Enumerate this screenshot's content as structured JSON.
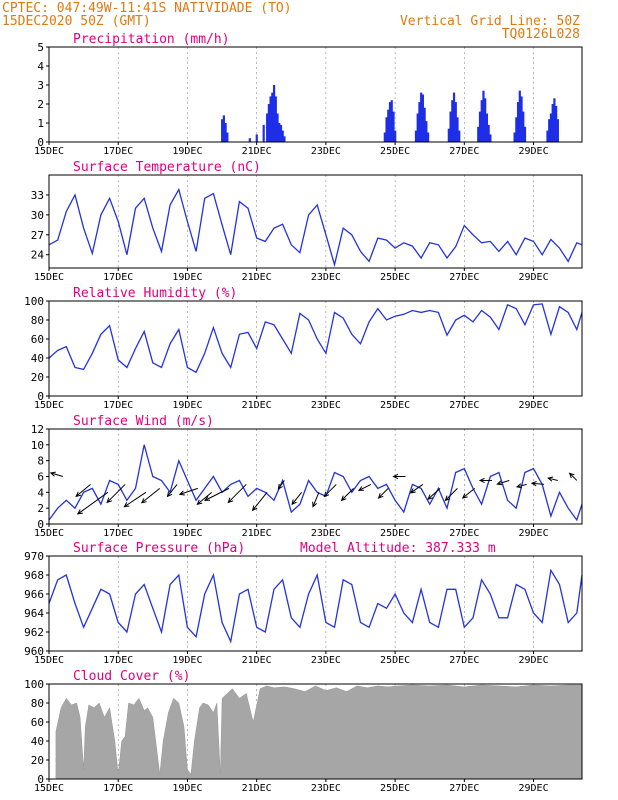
{
  "header": {
    "line1": "CPTEC:   047:49W-11:41S  NATIVIDADE (TO)",
    "line2": "15DEC2020 50Z (GMT)",
    "right1": "Vertical Grid Line: 50Z",
    "right2": "TQ0126L028"
  },
  "colors": {
    "header": "#e07a10",
    "title": "#e0007f",
    "line": "#2233dd",
    "bars": "#1e2ee6",
    "cloud": "#a6a6a6",
    "arrow": "#000000"
  },
  "x_ticks": [
    "15DEC",
    "17DEC",
    "19DEC",
    "21DEC",
    "23DEC",
    "25DEC",
    "27DEC",
    "29DEC"
  ],
  "x_tick_days": [
    0,
    2,
    4,
    6,
    8,
    10,
    12,
    14
  ],
  "x_range_days": [
    0,
    15.4
  ],
  "chart_data": [
    {
      "type": "bar",
      "title": "Precipitation (mm/h)",
      "ylim": [
        0,
        5
      ],
      "yticks": [
        "0",
        "1",
        "2",
        "3",
        "4",
        "5"
      ],
      "x_days": [
        5.0,
        5.05,
        5.1,
        5.15,
        5.8,
        6.0,
        6.2,
        6.3,
        6.35,
        6.4,
        6.45,
        6.5,
        6.55,
        6.6,
        6.65,
        6.7,
        6.75,
        6.8,
        9.7,
        9.75,
        9.8,
        9.85,
        9.9,
        9.95,
        10.0,
        10.6,
        10.65,
        10.7,
        10.75,
        10.8,
        10.85,
        10.9,
        10.95,
        11.55,
        11.6,
        11.65,
        11.7,
        11.75,
        11.8,
        11.85,
        12.4,
        12.45,
        12.5,
        12.55,
        12.6,
        12.65,
        12.7,
        12.75,
        13.45,
        13.5,
        13.55,
        13.6,
        13.65,
        13.7,
        13.75,
        14.4,
        14.45,
        14.5,
        14.55,
        14.6,
        14.65,
        14.7
      ],
      "values": [
        1.2,
        1.4,
        1.0,
        0.5,
        0.2,
        0.4,
        0.9,
        1.5,
        2.0,
        2.4,
        2.6,
        3.0,
        2.4,
        1.5,
        1.0,
        0.9,
        0.6,
        0.3,
        0.5,
        1.3,
        1.7,
        2.1,
        2.2,
        1.6,
        0.6,
        0.6,
        1.5,
        2.1,
        2.6,
        2.5,
        1.8,
        1.1,
        0.5,
        0.7,
        1.6,
        2.2,
        2.6,
        2.1,
        1.3,
        0.6,
        0.8,
        1.6,
        2.2,
        2.7,
        2.3,
        1.5,
        0.9,
        0.4,
        0.5,
        1.3,
        2.1,
        2.7,
        2.4,
        1.6,
        0.8,
        0.6,
        1.2,
        1.5,
        2.0,
        2.3,
        1.9,
        1.2
      ]
    },
    {
      "type": "line",
      "title": "Surface Temperature (nC)",
      "ylim": [
        22,
        36
      ],
      "yticks": [
        "24",
        "27",
        "30",
        "33"
      ],
      "ytick_values": [
        24,
        27,
        30,
        33
      ],
      "x_days": [
        0,
        0.25,
        0.5,
        0.75,
        1.0,
        1.25,
        1.5,
        1.75,
        2.0,
        2.25,
        2.5,
        2.75,
        3.0,
        3.25,
        3.5,
        3.75,
        4.0,
        4.25,
        4.5,
        4.75,
        5.0,
        5.25,
        5.5,
        5.75,
        6.0,
        6.25,
        6.5,
        6.75,
        7.0,
        7.25,
        7.5,
        7.75,
        8.0,
        8.25,
        8.5,
        8.75,
        9.0,
        9.25,
        9.5,
        9.75,
        10.0,
        10.25,
        10.5,
        10.75,
        11.0,
        11.25,
        11.5,
        11.75,
        12.0,
        12.25,
        12.5,
        12.75,
        13.0,
        13.25,
        13.5,
        13.75,
        14.0,
        14.25,
        14.5,
        14.75,
        15.0,
        15.25,
        15.4
      ],
      "values": [
        25.5,
        26.2,
        30.5,
        33.0,
        28.0,
        24.2,
        30.0,
        32.5,
        29.0,
        24.0,
        31.0,
        32.5,
        28.0,
        24.5,
        31.5,
        33.8,
        29.0,
        24.5,
        32.5,
        33.2,
        28.5,
        24.0,
        32.0,
        31.0,
        26.5,
        26.0,
        28.0,
        28.6,
        25.5,
        24.3,
        30.0,
        31.5,
        27.0,
        22.5,
        28.0,
        27.0,
        24.5,
        23.0,
        26.5,
        26.2,
        25.0,
        25.8,
        25.3,
        23.5,
        25.8,
        25.5,
        23.5,
        25.2,
        28.4,
        27.0,
        25.8,
        26.0,
        24.5,
        26.0,
        24.0,
        26.5,
        26.0,
        24.0,
        26.3,
        25.0,
        23.0,
        25.8,
        25.5
      ]
    },
    {
      "type": "line",
      "title": "Relative Humidity (%)",
      "ylim": [
        0,
        100
      ],
      "yticks": [
        "0",
        "20",
        "40",
        "60",
        "80",
        "100"
      ],
      "x_days": [
        0,
        0.25,
        0.5,
        0.75,
        1.0,
        1.25,
        1.5,
        1.75,
        2.0,
        2.25,
        2.5,
        2.75,
        3.0,
        3.25,
        3.5,
        3.75,
        4.0,
        4.25,
        4.5,
        4.75,
        5.0,
        5.25,
        5.5,
        5.75,
        6.0,
        6.25,
        6.5,
        6.75,
        7.0,
        7.25,
        7.5,
        7.75,
        8.0,
        8.25,
        8.5,
        8.75,
        9.0,
        9.25,
        9.5,
        9.75,
        10.0,
        10.25,
        10.5,
        10.75,
        11.0,
        11.25,
        11.5,
        11.75,
        12.0,
        12.25,
        12.5,
        12.75,
        13.0,
        13.25,
        13.5,
        13.75,
        14.0,
        14.25,
        14.5,
        14.75,
        15.0,
        15.25,
        15.4
      ],
      "values": [
        40.0,
        48.0,
        52.0,
        30.0,
        28.0,
        45.0,
        65.0,
        74.0,
        38.0,
        30.0,
        50.0,
        68.0,
        35.0,
        30.0,
        55.0,
        70.0,
        30.0,
        25.0,
        45.0,
        72.0,
        45.0,
        30.0,
        65.0,
        67.0,
        50.0,
        78.0,
        75.0,
        60.0,
        45.0,
        87.0,
        80.0,
        60.0,
        45.0,
        88.0,
        82.0,
        65.0,
        55.0,
        78.0,
        92.0,
        80.0,
        84.0,
        86.0,
        90.0,
        88.0,
        90.0,
        88.0,
        64.0,
        80.0,
        85.0,
        78.0,
        90.0,
        83.0,
        70.0,
        96.0,
        92.0,
        75.0,
        96.0,
        97.0,
        65.0,
        94.0,
        88.0,
        70.0,
        88.0
      ]
    },
    {
      "type": "line",
      "title": "Surface Wind (m/s)",
      "ylim": [
        0,
        12
      ],
      "yticks": [
        "0",
        "2",
        "4",
        "6",
        "8",
        "10",
        "12"
      ],
      "x_days": [
        0,
        0.25,
        0.5,
        0.75,
        1.0,
        1.25,
        1.5,
        1.75,
        2.0,
        2.25,
        2.5,
        2.75,
        3.0,
        3.25,
        3.5,
        3.75,
        4.0,
        4.25,
        4.5,
        4.75,
        5.0,
        5.25,
        5.5,
        5.75,
        6.0,
        6.25,
        6.5,
        6.75,
        7.0,
        7.25,
        7.5,
        7.75,
        8.0,
        8.25,
        8.5,
        8.75,
        9.0,
        9.25,
        9.5,
        9.75,
        10.0,
        10.25,
        10.5,
        10.75,
        11.0,
        11.25,
        11.5,
        11.75,
        12.0,
        12.25,
        12.5,
        12.75,
        13.0,
        13.25,
        13.5,
        13.75,
        14.0,
        14.25,
        14.5,
        14.75,
        15.0,
        15.25,
        15.4
      ],
      "values": [
        0.5,
        2.0,
        3.0,
        2.0,
        4.0,
        4.5,
        2.5,
        5.5,
        5.0,
        3.0,
        4.5,
        10.0,
        6.0,
        5.5,
        4.0,
        8.0,
        5.5,
        3.0,
        4.5,
        6.0,
        4.0,
        5.0,
        5.5,
        3.5,
        4.5,
        4.0,
        3.0,
        5.5,
        1.5,
        2.5,
        5.5,
        4.0,
        3.5,
        6.5,
        6.0,
        4.0,
        5.5,
        6.0,
        4.5,
        5.0,
        3.0,
        1.5,
        5.0,
        4.5,
        2.5,
        4.5,
        2.0,
        6.5,
        7.0,
        4.5,
        2.5,
        6.0,
        6.5,
        3.0,
        2.0,
        6.5,
        7.0,
        5.0,
        1.0,
        4.0,
        2.0,
        0.5,
        2.5
      ],
      "vectors": {
        "x_days": [
          0.4,
          1.2,
          1.7,
          2.2,
          2.8,
          3.2,
          3.7,
          4.3,
          4.7,
          5.2,
          5.7,
          6.3,
          6.8,
          7.3,
          7.8,
          8.3,
          8.8,
          9.3,
          9.8,
          10.3,
          10.8,
          11.3,
          11.8,
          12.3,
          12.8,
          13.3,
          13.8,
          14.3,
          14.7,
          15.25
        ],
        "y": [
          6.0,
          5.0,
          4.0,
          5.0,
          4.0,
          4.5,
          5.0,
          4.5,
          4.0,
          4.5,
          5.0,
          4.0,
          5.5,
          4.0,
          4.0,
          5.0,
          4.5,
          5.0,
          4.5,
          6.0,
          5.0,
          4.5,
          4.5,
          4.5,
          5.5,
          5.5,
          5.0,
          5.0,
          5.5,
          5.5
        ],
        "u": [
          -1.0,
          -1.2,
          -2.5,
          -1.5,
          -1.8,
          -1.5,
          -0.8,
          -1.5,
          -1.2,
          -2.0,
          -1.5,
          -1.2,
          -0.5,
          -0.8,
          -0.5,
          -1.0,
          -1.0,
          -1.0,
          -0.8,
          -1.0,
          -1.0,
          -1.0,
          -1.0,
          -1.0,
          -1.0,
          -1.0,
          -0.8,
          -1.0,
          -0.8,
          -0.6
        ],
        "v": [
          0.3,
          -1.0,
          -1.8,
          -1.5,
          -1.2,
          -1.2,
          -1.0,
          -0.5,
          -1.0,
          -1.0,
          -1.5,
          -1.5,
          -0.7,
          -1.0,
          -1.2,
          -1.0,
          -1.0,
          -0.5,
          -0.8,
          0.0,
          -0.7,
          -0.9,
          -1.0,
          -0.8,
          0.0,
          -0.3,
          -0.2,
          0.1,
          0.2,
          0.6
        ]
      }
    },
    {
      "type": "line",
      "title": "Surface Pressure (hPa)",
      "subtitle": "Model Altitude: 387.333 m",
      "ylim": [
        960,
        970
      ],
      "yticks": [
        "960",
        "962",
        "964",
        "966",
        "968",
        "970"
      ],
      "x_days": [
        0,
        0.25,
        0.5,
        0.75,
        1.0,
        1.25,
        1.5,
        1.75,
        2.0,
        2.25,
        2.5,
        2.75,
        3.0,
        3.25,
        3.5,
        3.75,
        4.0,
        4.25,
        4.5,
        4.75,
        5.0,
        5.25,
        5.5,
        5.75,
        6.0,
        6.25,
        6.5,
        6.75,
        7.0,
        7.25,
        7.5,
        7.75,
        8.0,
        8.25,
        8.5,
        8.75,
        9.0,
        9.25,
        9.5,
        9.75,
        10.0,
        10.25,
        10.5,
        10.75,
        11.0,
        11.25,
        11.5,
        11.75,
        12.0,
        12.25,
        12.5,
        12.75,
        13.0,
        13.25,
        13.5,
        13.75,
        14.0,
        14.25,
        14.5,
        14.75,
        15.0,
        15.25,
        15.4
      ],
      "values": [
        965.0,
        967.5,
        968.0,
        965.0,
        962.5,
        964.5,
        966.5,
        966.0,
        963.0,
        962.0,
        966.0,
        967.0,
        964.5,
        962.0,
        967.0,
        968.0,
        962.5,
        961.5,
        966.0,
        968.0,
        963.0,
        961.0,
        966.0,
        966.5,
        962.5,
        962.0,
        966.5,
        967.5,
        963.5,
        962.5,
        966.0,
        968.0,
        963.0,
        962.5,
        967.5,
        967.0,
        963.0,
        962.5,
        965.0,
        964.5,
        966.0,
        964.0,
        963.0,
        966.5,
        963.0,
        962.5,
        966.5,
        966.5,
        962.5,
        963.5,
        967.5,
        966.0,
        963.5,
        963.5,
        967.0,
        966.5,
        964.0,
        963.0,
        968.5,
        967.0,
        963.0,
        964.0,
        968.0
      ]
    },
    {
      "type": "area",
      "title": "Cloud Cover (%)",
      "ylim": [
        0,
        100
      ],
      "yticks": [
        "0",
        "20",
        "40",
        "60",
        "80",
        "100"
      ],
      "x_days": [
        0.2,
        0.35,
        0.5,
        0.65,
        0.8,
        0.9,
        1.0,
        1.05,
        1.15,
        1.3,
        1.45,
        1.6,
        1.75,
        1.9,
        2.0,
        2.1,
        2.2,
        2.3,
        2.45,
        2.6,
        2.75,
        2.85,
        3.0,
        3.1,
        3.2,
        3.3,
        3.45,
        3.6,
        3.75,
        3.9,
        4.0,
        4.1,
        4.2,
        4.35,
        4.45,
        4.6,
        4.75,
        4.85,
        4.95,
        5.0,
        5.15,
        5.3,
        5.5,
        5.7,
        5.9,
        6.1,
        6.3,
        6.5,
        6.8,
        7.1,
        7.4,
        7.7,
        8.0,
        8.3,
        8.6,
        8.9,
        9.2,
        9.5,
        9.8,
        10.1,
        10.5,
        11.0,
        11.5,
        12.0,
        12.5,
        13.0,
        13.5,
        14.0,
        14.5,
        15.0,
        15.4
      ],
      "values": [
        50.0,
        75.0,
        85.0,
        78.0,
        80.0,
        65.0,
        10.0,
        55.0,
        78.0,
        75.0,
        80.0,
        65.0,
        75.0,
        40.0,
        5.0,
        40.0,
        45.0,
        80.0,
        78.0,
        85.0,
        72.0,
        75.0,
        65.0,
        35.0,
        5.0,
        40.0,
        70.0,
        85.0,
        80.0,
        55.0,
        10.0,
        5.0,
        40.0,
        75.0,
        80.0,
        78.0,
        70.0,
        80.0,
        5.0,
        85.0,
        90.0,
        95.0,
        85.0,
        90.0,
        60.0,
        95.0,
        98.0,
        96.0,
        97.0,
        95.0,
        92.0,
        98.0,
        93.0,
        96.0,
        92.0,
        98.0,
        96.0,
        98.0,
        97.0,
        98.0,
        99.0,
        98.0,
        99.0,
        97.0,
        99.0,
        98.0,
        97.0,
        99.0,
        98.0,
        99.0,
        99.0
      ]
    }
  ]
}
